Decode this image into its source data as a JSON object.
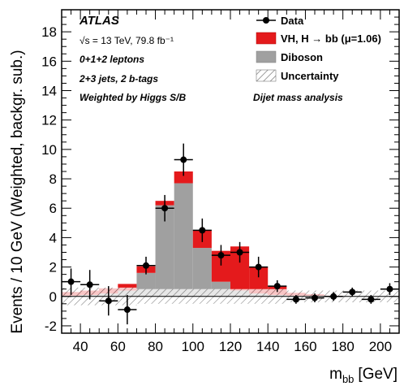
{
  "chart_data": {
    "type": "bar",
    "title": "",
    "experiment": "ATLAS",
    "notes": [
      "√s = 13 TeV, 79.8 fb⁻¹",
      "0+1+2 leptons",
      "2+3 jets, 2 b-tags",
      "Weighted by Higgs S/B"
    ],
    "analysis_label": "Dijet mass analysis",
    "xlabel": "m",
    "xlabel_sub": "bb",
    "xlabel_unit": "[GeV]",
    "ylabel": "Events / 10 GeV (Weighted, backgr. sub.)",
    "xlim": [
      30,
      210
    ],
    "ylim": [
      -2.5,
      19.5
    ],
    "xticks": [
      40,
      60,
      80,
      100,
      120,
      140,
      160,
      180,
      200
    ],
    "yticks": [
      -2,
      0,
      2,
      4,
      6,
      8,
      10,
      12,
      14,
      16,
      18
    ],
    "bin_edges": [
      30,
      40,
      50,
      60,
      70,
      80,
      90,
      100,
      110,
      120,
      130,
      140,
      150,
      160,
      170,
      180,
      190,
      200,
      210
    ],
    "series": [
      {
        "name": "Diboson",
        "kind": "stack",
        "color": "#a0a0a0",
        "values": [
          0.05,
          0.1,
          0.2,
          0.4,
          1.6,
          6.2,
          7.7,
          3.3,
          1.0,
          0.4,
          0.2,
          0.1,
          0.05,
          0.05,
          0.0,
          0.0,
          0.0,
          0.0
        ]
      },
      {
        "name": "VH, H → bb (μ=1.06)",
        "kind": "stack",
        "color": "#e41a1c",
        "values": [
          0.25,
          0.3,
          0.35,
          0.45,
          0.45,
          0.3,
          0.8,
          1.2,
          2.1,
          3.0,
          1.8,
          0.6,
          0.2,
          0.1,
          0.05,
          0.0,
          0.0,
          0.0
        ]
      },
      {
        "name": "Data",
        "kind": "points",
        "color": "#000000",
        "x": [
          35,
          45,
          55,
          65,
          75,
          85,
          95,
          105,
          115,
          125,
          135,
          145,
          155,
          165,
          175,
          185,
          195,
          205
        ],
        "values": [
          1.0,
          0.8,
          -0.3,
          -0.9,
          2.1,
          6.0,
          9.3,
          4.5,
          2.8,
          3.0,
          2.0,
          0.7,
          -0.2,
          -0.1,
          0.0,
          0.3,
          -0.2,
          0.5
        ],
        "errors": [
          0.9,
          1.0,
          1.0,
          1.0,
          0.6,
          0.9,
          1.1,
          0.8,
          0.7,
          0.7,
          0.7,
          0.4,
          0.3,
          0.3,
          0.3,
          0.3,
          0.3,
          0.4
        ]
      }
    ],
    "uncertainty": {
      "name": "Uncertainty",
      "values": [
        0.6,
        0.6,
        0.6,
        0.6,
        0.5,
        0.5,
        0.5,
        0.5,
        0.5,
        0.5,
        0.5,
        0.5,
        0.4,
        0.4,
        0.4,
        0.4,
        0.4,
        0.4
      ]
    },
    "legend": {
      "placement": "top-right",
      "entries": [
        "Data",
        "VH, H → bb (μ=1.06)",
        "Diboson",
        "Uncertainty"
      ]
    }
  }
}
